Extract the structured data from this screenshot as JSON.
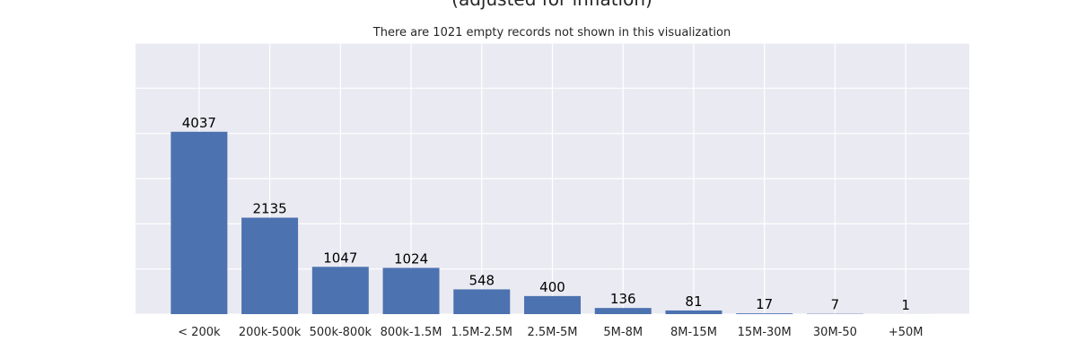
{
  "chart_data": {
    "type": "bar",
    "title": "(adjusted for inflation)",
    "subtitle": "There are 1021 empty records not shown in this visualization",
    "xlabel": "",
    "ylabel": "",
    "categories": [
      "< 200k",
      "200k-500k",
      "500k-800k",
      "800k-1.5M",
      "1.5M-2.5M",
      "2.5M-5M",
      "5M-8M",
      "8M-15M",
      "15M-30M",
      "30M-50",
      "+50M"
    ],
    "values": [
      4037,
      2135,
      1047,
      1024,
      548,
      400,
      136,
      81,
      17,
      7,
      1
    ],
    "ylim": [
      0,
      6000
    ],
    "grid": true,
    "legend": "none",
    "colors": {
      "bar": "#4c72b0",
      "plot_background": "#eaeaf2",
      "grid": "#ffffff",
      "text": "#262626",
      "label": "#000000"
    }
  }
}
